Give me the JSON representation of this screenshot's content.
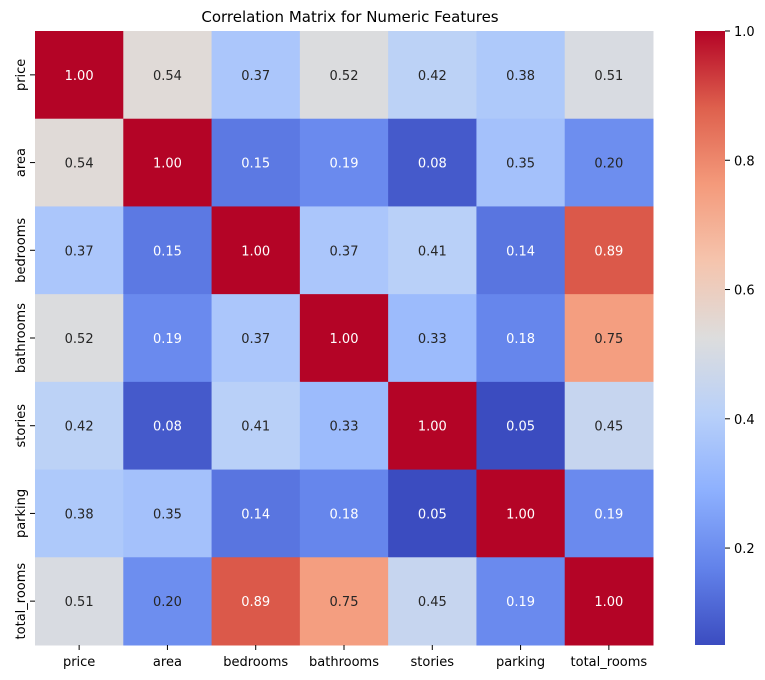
{
  "chart_data": {
    "type": "heatmap",
    "title": "Correlation Matrix for Numeric Features",
    "xlabel": "",
    "ylabel": "",
    "x_categories": [
      "price",
      "area",
      "bedrooms",
      "bathrooms",
      "stories",
      "parking",
      "total_rooms"
    ],
    "y_categories": [
      "price",
      "area",
      "bedrooms",
      "bathrooms",
      "stories",
      "parking",
      "total_rooms"
    ],
    "values": [
      [
        1.0,
        0.54,
        0.37,
        0.52,
        0.42,
        0.38,
        0.51
      ],
      [
        0.54,
        1.0,
        0.15,
        0.19,
        0.08,
        0.35,
        0.2
      ],
      [
        0.37,
        0.15,
        1.0,
        0.37,
        0.41,
        0.14,
        0.89
      ],
      [
        0.52,
        0.19,
        0.37,
        1.0,
        0.33,
        0.18,
        0.75
      ],
      [
        0.42,
        0.08,
        0.41,
        0.33,
        1.0,
        0.05,
        0.45
      ],
      [
        0.38,
        0.35,
        0.14,
        0.18,
        0.05,
        1.0,
        0.19
      ],
      [
        0.51,
        0.2,
        0.89,
        0.75,
        0.45,
        0.19,
        1.0
      ]
    ],
    "colormap": "coolwarm",
    "colorbar": {
      "vmin": 0.05,
      "vmax": 1.0,
      "ticks": [
        0.2,
        0.4,
        0.6,
        0.8,
        1.0
      ],
      "tick_labels": [
        "0.2",
        "0.4",
        "0.6",
        "0.8",
        "1.0"
      ]
    },
    "annotation_format": "0.00",
    "grid": false
  }
}
